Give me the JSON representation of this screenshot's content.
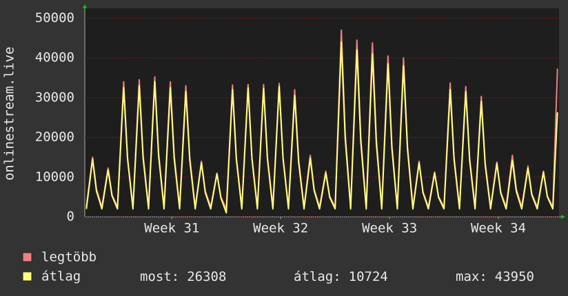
{
  "chart_data": {
    "type": "line",
    "y_label": "onlinestream.live",
    "xlim": [
      0,
      30.5
    ],
    "xticks": [
      {
        "value": 5.6,
        "label": "Week 31"
      },
      {
        "value": 12.6,
        "label": "Week 32"
      },
      {
        "value": 19.6,
        "label": "Week 33"
      },
      {
        "value": 26.6,
        "label": "Week 34"
      }
    ],
    "ylim": [
      0,
      52500
    ],
    "yticks": [
      0,
      10000,
      20000,
      30000,
      40000,
      50000
    ],
    "grid": true,
    "x": [
      0.1,
      0.5,
      0.75,
      1.1,
      1.5,
      1.75,
      2.1,
      2.5,
      2.75,
      3.1,
      3.5,
      3.75,
      4.1,
      4.5,
      4.75,
      5.1,
      5.5,
      5.75,
      6.1,
      6.5,
      6.75,
      7.1,
      7.5,
      7.75,
      8.1,
      8.5,
      8.75,
      9.1,
      9.5,
      9.75,
      10.1,
      10.5,
      10.75,
      11.1,
      11.5,
      11.75,
      12.1,
      12.5,
      12.75,
      13.1,
      13.5,
      13.75,
      14.1,
      14.5,
      14.75,
      15.1,
      15.5,
      15.75,
      16.1,
      16.5,
      16.75,
      17.1,
      17.5,
      17.75,
      18.1,
      18.5,
      18.75,
      19.1,
      19.5,
      19.75,
      20.1,
      20.5,
      20.75,
      21.1,
      21.5,
      21.75,
      22.1,
      22.5,
      22.75,
      23.1,
      23.5,
      23.75,
      24.1,
      24.5,
      24.75,
      25.1,
      25.5,
      25.75,
      26.1,
      26.5,
      26.75,
      27.1,
      27.5,
      27.75,
      28.1,
      28.5,
      28.75,
      29.1,
      29.5,
      29.75,
      30.1,
      30.4
    ],
    "series": [
      {
        "name": "legtöbb",
        "color": "#f08080",
        "values": [
          2500,
          15000,
          7000,
          2500,
          12300,
          5500,
          2500,
          34000,
          15000,
          2500,
          34500,
          15500,
          2500,
          35200,
          16000,
          2500,
          34000,
          15500,
          2500,
          33000,
          15000,
          2500,
          14000,
          6500,
          2500,
          11000,
          5000,
          2000,
          33200,
          15000,
          2500,
          33300,
          15000,
          2500,
          33300,
          15000,
          2500,
          33600,
          15000,
          2500,
          32000,
          14500,
          2500,
          15500,
          7000,
          2500,
          11500,
          5200,
          2500,
          47000,
          21000,
          2500,
          44500,
          20000,
          2500,
          43800,
          19500,
          2500,
          40500,
          18000,
          2500,
          40000,
          18000,
          2500,
          14000,
          6300,
          2500,
          11300,
          5100,
          2500,
          33700,
          15000,
          2500,
          32800,
          14800,
          2500,
          30300,
          13600,
          2500,
          13800,
          6200,
          2500,
          15500,
          7000,
          2500,
          12800,
          5800,
          2500,
          11500,
          5200,
          2500,
          37300
        ]
      },
      {
        "name": "átlag",
        "color": "#ffff80",
        "values": [
          2000,
          14500,
          6500,
          2000,
          11800,
          5300,
          2000,
          32500,
          14600,
          2000,
          33000,
          14800,
          2000,
          34000,
          15300,
          2000,
          32500,
          14600,
          2000,
          31500,
          14200,
          2000,
          13600,
          6100,
          2000,
          10800,
          4800,
          1000,
          32000,
          14400,
          2000,
          32500,
          14600,
          2000,
          32300,
          14500,
          2000,
          32800,
          14700,
          2000,
          30500,
          13700,
          2000,
          14800,
          6600,
          2000,
          11000,
          4900,
          2000,
          43950,
          19700,
          2000,
          42000,
          18900,
          2000,
          41000,
          18400,
          2000,
          38500,
          17300,
          2000,
          38000,
          17100,
          2000,
          13600,
          6100,
          2000,
          11000,
          4900,
          2000,
          32000,
          14400,
          2000,
          31500,
          14200,
          2000,
          29000,
          13000,
          2000,
          13400,
          6000,
          2000,
          14200,
          6400,
          2000,
          12200,
          5500,
          2000,
          11200,
          5000,
          2000,
          26308
        ]
      }
    ],
    "stats": [
      {
        "label": "most:",
        "value": 26308
      },
      {
        "label": "átlag:",
        "value": 10724
      },
      {
        "label": "max:",
        "value": 43950
      }
    ]
  }
}
